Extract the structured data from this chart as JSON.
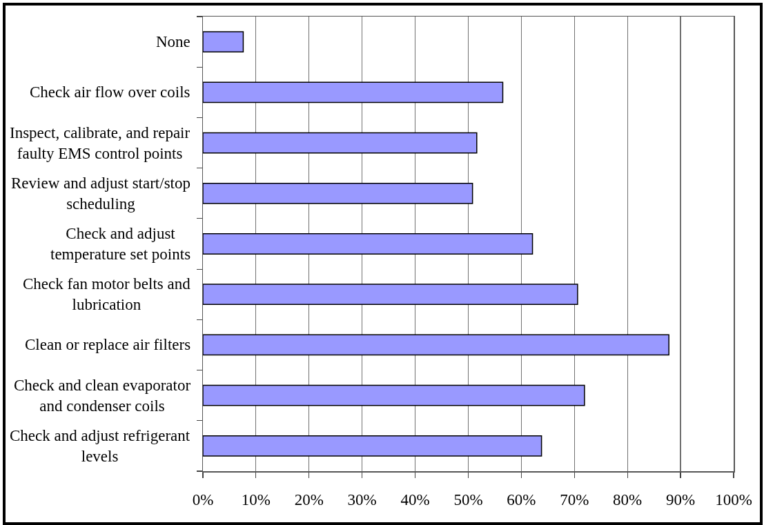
{
  "chart_data": {
    "type": "bar",
    "orientation": "horizontal",
    "categories": [
      "None",
      "Check air flow over coils",
      "Inspect, calibrate, and repair faulty EMS control points",
      "Review and adjust start/stop scheduling",
      "Check and adjust temperature set points",
      "Check fan motor belts and lubrication",
      "Clean or replace air filters",
      "Check and clean evaporator and condenser coils",
      "Check and adjust refrigerant levels"
    ],
    "values": [
      7.6,
      56.5,
      51.6,
      50.8,
      62.1,
      70.6,
      87.8,
      71.9,
      63.8
    ],
    "color": "#9999ff",
    "xlim": [
      0,
      100
    ],
    "xticks": [
      {
        "value": 0,
        "label": "0%"
      },
      {
        "value": 10,
        "label": "10%"
      },
      {
        "value": 20,
        "label": "20%"
      },
      {
        "value": 30,
        "label": "30%"
      },
      {
        "value": 40,
        "label": "40%"
      },
      {
        "value": 50,
        "label": "50%"
      },
      {
        "value": 60,
        "label": "60%"
      },
      {
        "value": 70,
        "label": "70%"
      },
      {
        "value": 80,
        "label": "80%"
      },
      {
        "value": 90,
        "label": "90%"
      },
      {
        "value": 100,
        "label": "100%"
      }
    ],
    "grid": "x"
  }
}
